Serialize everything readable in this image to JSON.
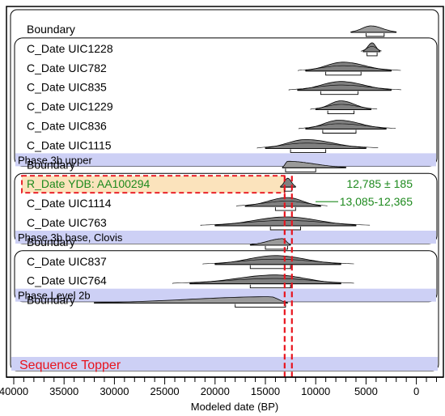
{
  "chart_data": {
    "type": "ridgeline",
    "xlabel": "Modeled date (BP)",
    "x_ticks": [
      40000,
      35000,
      30000,
      25000,
      20000,
      15000,
      10000,
      5000,
      0
    ],
    "xlim": [
      42000,
      -2500
    ],
    "x_reversed": true,
    "rows": [
      {
        "label": "Boundary",
        "kind": "boundary",
        "peak": 4500,
        "from": 6500,
        "to": 2000,
        "range_from": 5000,
        "range_to": 3200
      },
      {
        "label": "C_Date UIC1228",
        "kind": "date",
        "peak": 4400,
        "from": 5300,
        "to": 3600,
        "range_from": 4900,
        "range_to": 3900
      },
      {
        "label": "C_Date UIC782",
        "kind": "date",
        "peak": 7300,
        "from": 11000,
        "to": 2500,
        "range_from": 9000,
        "range_to": 5500
      },
      {
        "label": "C_Date UIC835",
        "kind": "date",
        "peak": 7500,
        "from": 11800,
        "to": 2500,
        "range_from": 9500,
        "range_to": 5800
      },
      {
        "label": "C_Date UIC1229",
        "kind": "date",
        "peak": 7500,
        "from": 10000,
        "to": 4500,
        "range_from": 8800,
        "range_to": 6200
      },
      {
        "label": "C_Date UIC836",
        "kind": "date",
        "peak": 7700,
        "from": 11000,
        "to": 3000,
        "range_from": 9300,
        "range_to": 6000
      },
      {
        "label": "C_Date UIC1115",
        "kind": "date",
        "peak": 11000,
        "from": 15000,
        "to": 5000,
        "range_from": 12500,
        "range_to": 9000
      },
      {
        "label": "Boundary",
        "kind": "boundary",
        "peak": 12800,
        "from": 13300,
        "to": 7000,
        "range_from": 13000,
        "range_to": 10000
      },
      {
        "label": "R_Date YDB: AA100294",
        "kind": "highlight",
        "peak": 12785,
        "from": 13500,
        "to": 12000,
        "range_from": 13085,
        "range_to": 12365
      },
      {
        "label": "C_Date UIC1114",
        "kind": "date",
        "peak": 12800,
        "from": 17000,
        "to": 9500,
        "range_from": 14000,
        "range_to": 12000
      },
      {
        "label": "C_Date UIC763",
        "kind": "date",
        "peak": 12900,
        "from": 20000,
        "to": 6000,
        "range_from": 14500,
        "range_to": 11500
      },
      {
        "label": "Boundary",
        "kind": "boundary",
        "peak": 13300,
        "from": 16500,
        "to": 12500,
        "range_from": 15000,
        "range_to": 12800
      },
      {
        "label": "C_Date UIC837",
        "kind": "date",
        "peak": 14000,
        "from": 20000,
        "to": 7500,
        "range_from": 16500,
        "range_to": 12500
      },
      {
        "label": "C_Date UIC764",
        "kind": "date",
        "peak": 14000,
        "from": 22500,
        "to": 7500,
        "range_from": 16500,
        "range_to": 12500
      },
      {
        "label": "Boundary",
        "kind": "boundary",
        "peak": 14500,
        "from": 32000,
        "to": 12800,
        "range_from": 18000,
        "range_to": 13000
      }
    ],
    "phases": [
      {
        "label": "Phase 3b upper",
        "first_row": 1,
        "last_row": 6
      },
      {
        "label": "Phase 3b base, Clovis",
        "first_row": 8,
        "last_row": 10
      },
      {
        "label": "Phase Level 2b",
        "first_row": 12,
        "last_row": 13
      },
      {
        "label": "Sequence Topper",
        "first_row": 0,
        "last_row": 14
      }
    ],
    "annotations": [
      {
        "text": "12,785 ± 185",
        "color": "#1e8a1e"
      },
      {
        "text": "13,085-12,365",
        "color": "#1e8a1e",
        "strike": true
      }
    ],
    "reference_lines": [
      13085,
      12365
    ],
    "colors": {
      "fill": "#808080",
      "phase_band": "#cdd0f5",
      "highlight_fill": "#fbe3bc",
      "ref_line": "#e8141e",
      "sequence_label": "#e8141e",
      "annotation": "#1e8a1e"
    }
  }
}
